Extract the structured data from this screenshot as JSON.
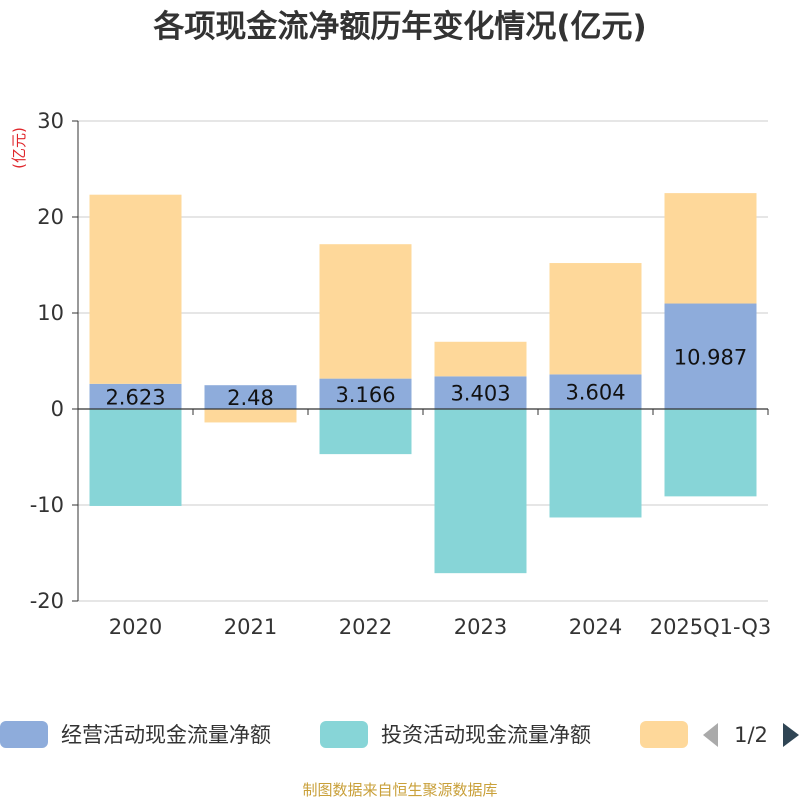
{
  "chart_data": {
    "type": "bar",
    "stacked": true,
    "title": "各项现金流净额历年变化情况(亿元)",
    "unit_label": "(亿元)",
    "categories": [
      "2020",
      "2021",
      "2022",
      "2023",
      "2024",
      "2025Q1-Q3"
    ],
    "ylim": [
      -20,
      30
    ],
    "yticks": [
      30,
      20,
      10,
      0,
      -10,
      -20
    ],
    "grid": true,
    "series": [
      {
        "name": "经营活动现金流量净额",
        "color": "#8eacdb",
        "values": [
          2.623,
          2.48,
          3.166,
          3.403,
          3.604,
          10.987
        ],
        "labels": [
          "2.623",
          "2.48",
          "3.166",
          "3.403",
          "3.604",
          "10.987"
        ]
      },
      {
        "name": "投资活动现金流量净额",
        "color": "#87d5d7",
        "values": [
          -10.1,
          0,
          -4.7,
          -17.1,
          -11.3,
          -9.1
        ]
      },
      {
        "name": "",
        "color": "#fed89a",
        "values": [
          19.7,
          -1.4,
          14.0,
          3.6,
          11.6,
          11.5
        ]
      }
    ],
    "legend_position": "bottom",
    "legend_page": "1/2",
    "source": "制图数据来自恒生聚源数据库"
  }
}
